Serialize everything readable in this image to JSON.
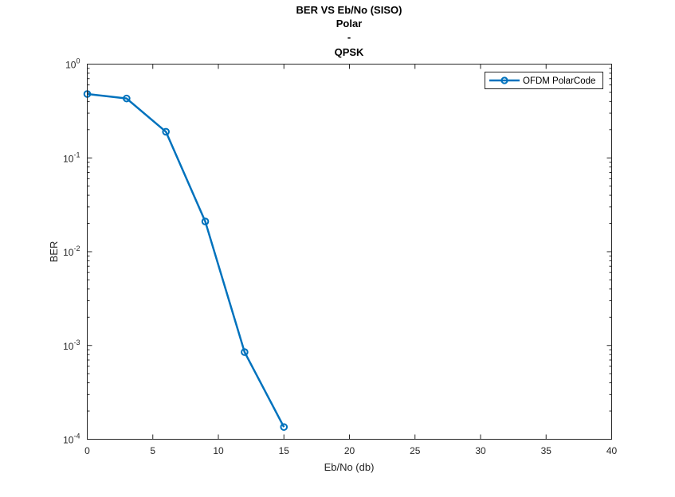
{
  "chart_data": {
    "type": "line",
    "title": [
      "BER VS Eb/No (SISO)",
      "Polar",
      "-",
      "QPSK"
    ],
    "xlabel": "Eb/No (db)",
    "ylabel": "BER",
    "xlim": [
      0,
      40
    ],
    "ylim": [
      0.0001,
      1
    ],
    "yscale": "log",
    "grid": false,
    "legend_position": "top-right",
    "x_ticks": [
      0,
      5,
      10,
      15,
      20,
      25,
      30,
      35,
      40
    ],
    "x_tick_labels": [
      "0",
      "5",
      "10",
      "15",
      "20",
      "25",
      "30",
      "35",
      "40"
    ],
    "y_ticks": [
      {
        "value": 1,
        "base": "10",
        "exp": "0"
      },
      {
        "value": 0.1,
        "base": "10",
        "exp": "-1"
      },
      {
        "value": 0.01,
        "base": "10",
        "exp": "-2"
      },
      {
        "value": 0.001,
        "base": "10",
        "exp": "-3"
      },
      {
        "value": 0.0001,
        "base": "10",
        "exp": "-4"
      }
    ],
    "series": [
      {
        "name": "OFDM PolarCode",
        "color": "#0072BD",
        "marker": "circle",
        "x": [
          0,
          3,
          6,
          9,
          12,
          15
        ],
        "y": [
          0.48,
          0.43,
          0.19,
          0.021,
          0.00085,
          0.000135
        ]
      }
    ]
  }
}
